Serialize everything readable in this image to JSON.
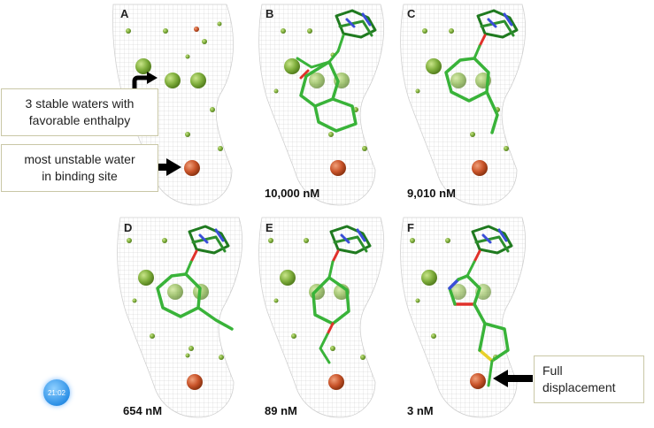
{
  "panels": [
    {
      "letter": "A",
      "affinity": ""
    },
    {
      "letter": "B",
      "affinity": "10,000 nM"
    },
    {
      "letter": "C",
      "affinity": "9,010 nM"
    },
    {
      "letter": "D",
      "affinity": "654 nM"
    },
    {
      "letter": "E",
      "affinity": "89 nM"
    },
    {
      "letter": "F",
      "affinity": "3 nM"
    }
  ],
  "callouts": {
    "stable_waters": "3 stable waters with\nfavorable enthalpy",
    "unstable_water": "most unstable water\nin binding site",
    "full_displacement": "Full\ndisplacement"
  },
  "clock_badge": "21:02",
  "colors": {
    "stable_water": "#7fae3c",
    "unstable_water": "#c9542a",
    "ligand_carbon": "#39b339",
    "oxygen": "#e0302a",
    "nitrogen": "#3a4ed8",
    "sulfur": "#e8d02a",
    "surface_mesh": "#bdbdbd"
  }
}
